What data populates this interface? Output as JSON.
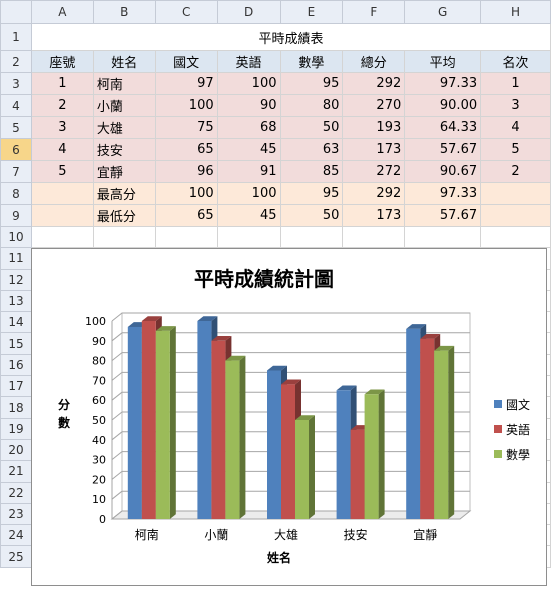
{
  "columns": [
    "A",
    "B",
    "C",
    "D",
    "E",
    "F",
    "G",
    "H"
  ],
  "rows": [
    "1",
    "2",
    "3",
    "4",
    "5",
    "6",
    "7",
    "8",
    "9",
    "10",
    "11",
    "12",
    "13",
    "14",
    "15",
    "16",
    "17",
    "18",
    "19",
    "20",
    "21",
    "22",
    "23",
    "24",
    "25"
  ],
  "sheet_title": "平時成績表",
  "headers": [
    "座號",
    "姓名",
    "國文",
    "英語",
    "數學",
    "總分",
    "平均",
    "名次"
  ],
  "students": [
    {
      "id": "1",
      "name": "柯南",
      "chinese": "97",
      "english": "100",
      "math": "95",
      "total": "292",
      "avg": "97.33",
      "rank": "1"
    },
    {
      "id": "2",
      "name": "小蘭",
      "chinese": "100",
      "english": "90",
      "math": "80",
      "total": "270",
      "avg": "90.00",
      "rank": "3"
    },
    {
      "id": "3",
      "name": "大雄",
      "chinese": "75",
      "english": "68",
      "math": "50",
      "total": "193",
      "avg": "64.33",
      "rank": "4"
    },
    {
      "id": "4",
      "name": "技安",
      "chinese": "65",
      "english": "45",
      "math": "63",
      "total": "173",
      "avg": "57.67",
      "rank": "5"
    },
    {
      "id": "5",
      "name": "宜靜",
      "chinese": "96",
      "english": "91",
      "math": "85",
      "total": "272",
      "avg": "90.67",
      "rank": "2"
    }
  ],
  "stats": [
    {
      "label": "最高分",
      "chinese": "100",
      "english": "100",
      "math": "95",
      "total": "292",
      "avg": "97.33"
    },
    {
      "label": "最低分",
      "chinese": "65",
      "english": "45",
      "math": "50",
      "total": "173",
      "avg": "57.67"
    }
  ],
  "chart_data": {
    "type": "bar",
    "title": "平時成績統計圖",
    "categories": [
      "柯南",
      "小蘭",
      "大雄",
      "技安",
      "宜靜"
    ],
    "series": [
      {
        "name": "國文",
        "values": [
          97,
          100,
          75,
          65,
          96
        ],
        "color": "#4f81bd"
      },
      {
        "name": "英語",
        "values": [
          100,
          90,
          68,
          45,
          91
        ],
        "color": "#c0504d"
      },
      {
        "name": "數學",
        "values": [
          95,
          80,
          50,
          63,
          85
        ],
        "color": "#9bbb59"
      }
    ],
    "xlabel": "姓名",
    "ylabel": "分數",
    "ylim": [
      0,
      100
    ],
    "yticks": [
      "0",
      "10",
      "20",
      "30",
      "40",
      "50",
      "60",
      "70",
      "80",
      "90",
      "100"
    ],
    "grid": true,
    "legend": "right"
  }
}
